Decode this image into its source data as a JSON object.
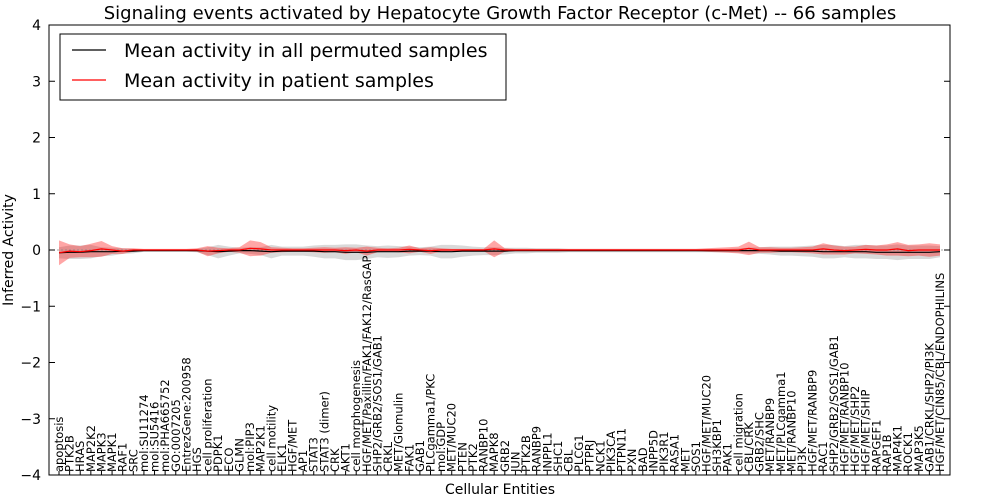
{
  "chart_data": {
    "type": "line",
    "title": "Signaling events activated by Hepatocyte Growth Factor Receptor (c-Met) -- 66 samples",
    "xlabel": "Cellular Entities",
    "ylabel": "Inferred Activity",
    "ylim": [
      -4,
      4
    ],
    "yticks": [
      -4,
      -3,
      -2,
      -1,
      0,
      1,
      2,
      3,
      4
    ],
    "legend": {
      "placement": "top-left",
      "entries": [
        {
          "label": "Mean activity in all permuted samples",
          "color": "#000000"
        },
        {
          "label": "Mean activity in patient samples",
          "color": "#ff0000"
        }
      ]
    },
    "categories": [
      "apoptosis",
      "PTK2B",
      "HRAS",
      "MAP2K2",
      "MAPK3",
      "MAPK1",
      "RAF1",
      "SRC",
      "mol:SU11274",
      "mol:SU5416",
      "mol:PHA665752",
      "GO:0007205",
      "EntrezGene:200958",
      "HGS",
      "cell proliferation",
      "PDPK1",
      "ECO",
      "GLMN",
      "mol:PIP3",
      "MAP2K1",
      "cell motility",
      "ELK1",
      "HGF/MET",
      "AP1",
      "STAT3",
      "STAT3 (dimer)",
      "CRK",
      "AKT1",
      "cell morphogenesis",
      "HGF/MET/Paxillin/FAK1/FAK12/RasGAP",
      "SHP2/GRB2/SOS1/GAB1",
      "CRKL",
      "MET/Glomulin",
      "FAK1",
      "GAB1",
      "PLCgamma1/PKC",
      "mol:GDP",
      "MET/MUC20",
      "PTEN",
      "PTK2",
      "RANBP10",
      "MAPK8",
      "GRB2",
      "JUN",
      "PTK2B",
      "RANBP9",
      "INPPL1",
      "SHC1",
      "CBL",
      "PLCG1",
      "PTPRJ",
      "NCK1",
      "PIK3CA",
      "PTPN11",
      "PXN",
      "BAD",
      "INPP5D",
      "PIK3R1",
      "RASA1",
      "MET",
      "SOS1",
      "HGF/MET/MUC20",
      "SH3KBP1",
      "PAK1",
      "cell migration",
      "CBL/CRK",
      "GRB2/SHC",
      "MET/RANBP9",
      "MET/PLCgamma1",
      "MET/RANBP10",
      "PI3K",
      "HGF/MET/RANBP9",
      "RAC1",
      "SHP2/GRB2/SOS1/GAB1",
      "HGF/MET/RANBP10",
      "HGF/MET/SHP2",
      "HGF/MET/SHIP",
      "RAPGEF1",
      "RAP1B",
      "MAP4K1",
      "ROCK1",
      "MAP3K5",
      "GAB1/CRKL/SHP2/PI3K",
      "HGF/MET/CIN85/CBL/ENDOPHILINS"
    ],
    "series": [
      {
        "name": "Mean activity in all permuted samples",
        "color": "#000000",
        "values": [
          -0.05,
          -0.04,
          -0.04,
          -0.03,
          -0.03,
          -0.03,
          -0.02,
          -0.02,
          -0.01,
          -0.01,
          -0.01,
          -0.01,
          -0.01,
          -0.01,
          -0.02,
          -0.03,
          -0.02,
          -0.01,
          -0.01,
          -0.02,
          -0.03,
          -0.02,
          -0.02,
          -0.02,
          -0.02,
          -0.03,
          -0.03,
          -0.04,
          -0.04,
          -0.04,
          -0.03,
          -0.03,
          -0.03,
          -0.02,
          -0.02,
          -0.02,
          -0.03,
          -0.03,
          -0.02,
          -0.02,
          -0.02,
          -0.02,
          -0.02,
          -0.01,
          -0.01,
          -0.01,
          -0.01,
          -0.01,
          -0.01,
          -0.01,
          -0.01,
          -0.01,
          -0.01,
          -0.01,
          -0.01,
          -0.01,
          -0.01,
          -0.01,
          -0.01,
          -0.01,
          -0.01,
          -0.01,
          -0.01,
          -0.01,
          -0.01,
          -0.01,
          -0.01,
          -0.01,
          -0.02,
          -0.02,
          -0.02,
          -0.02,
          -0.03,
          -0.03,
          -0.03,
          -0.03,
          -0.03,
          -0.04,
          -0.04,
          -0.04,
          -0.04,
          -0.04,
          -0.04,
          -0.03
        ]
      },
      {
        "name": "Mean activity in patient samples",
        "color": "#ff0000",
        "values": [
          -0.05,
          -0.02,
          -0.03,
          -0.01,
          0.02,
          0.0,
          -0.02,
          0.0,
          0.0,
          0.0,
          0.0,
          0.0,
          0.0,
          0.0,
          -0.02,
          -0.01,
          0.0,
          0.0,
          0.03,
          0.02,
          0.0,
          0.0,
          0.0,
          0.0,
          0.0,
          0.0,
          0.0,
          -0.01,
          0.0,
          -0.02,
          0.0,
          0.0,
          0.0,
          0.01,
          0.0,
          -0.01,
          0.0,
          0.0,
          0.0,
          0.0,
          0.0,
          0.02,
          0.0,
          0.0,
          0.0,
          0.0,
          0.0,
          0.0,
          0.0,
          0.0,
          0.0,
          0.0,
          0.0,
          0.0,
          0.0,
          0.0,
          0.0,
          0.0,
          0.0,
          0.0,
          0.0,
          0.0,
          0.0,
          0.0,
          0.0,
          0.03,
          0.0,
          0.0,
          0.0,
          0.0,
          0.0,
          0.0,
          0.02,
          0.0,
          -0.01,
          0.0,
          0.01,
          0.0,
          0.0,
          0.02,
          -0.01,
          0.0,
          0.0,
          0.0
        ]
      },
      {
        "name": "Permuted spread",
        "color": "#aaaaaa",
        "values": [
          0.1,
          0.12,
          0.12,
          0.12,
          0.08,
          0.07,
          0.05,
          0.04,
          0.02,
          0.02,
          0.02,
          0.02,
          0.02,
          0.03,
          0.07,
          0.12,
          0.08,
          0.05,
          0.06,
          0.07,
          0.12,
          0.08,
          0.08,
          0.08,
          0.1,
          0.12,
          0.12,
          0.14,
          0.14,
          0.12,
          0.1,
          0.11,
          0.1,
          0.08,
          0.07,
          0.08,
          0.12,
          0.12,
          0.1,
          0.08,
          0.07,
          0.07,
          0.06,
          0.05,
          0.05,
          0.04,
          0.04,
          0.04,
          0.03,
          0.03,
          0.03,
          0.03,
          0.03,
          0.03,
          0.03,
          0.03,
          0.03,
          0.03,
          0.03,
          0.03,
          0.03,
          0.03,
          0.03,
          0.03,
          0.04,
          0.05,
          0.06,
          0.07,
          0.08,
          0.08,
          0.09,
          0.1,
          0.12,
          0.12,
          0.1,
          0.12,
          0.12,
          0.12,
          0.12,
          0.14,
          0.12,
          0.12,
          0.12,
          0.1
        ]
      },
      {
        "name": "Patient spread",
        "color": "#ff0000",
        "values": [
          0.22,
          0.12,
          0.1,
          0.12,
          0.14,
          0.07,
          0.05,
          0.03,
          0.02,
          0.02,
          0.02,
          0.02,
          0.02,
          0.03,
          0.09,
          0.05,
          0.03,
          0.05,
          0.14,
          0.12,
          0.05,
          0.04,
          0.03,
          0.03,
          0.04,
          0.05,
          0.04,
          0.06,
          0.04,
          0.08,
          0.04,
          0.03,
          0.04,
          0.07,
          0.03,
          0.06,
          0.03,
          0.02,
          0.02,
          0.02,
          0.02,
          0.15,
          0.03,
          0.02,
          0.02,
          0.02,
          0.02,
          0.02,
          0.02,
          0.02,
          0.02,
          0.02,
          0.02,
          0.02,
          0.02,
          0.02,
          0.02,
          0.02,
          0.02,
          0.02,
          0.02,
          0.03,
          0.04,
          0.05,
          0.06,
          0.12,
          0.05,
          0.05,
          0.04,
          0.04,
          0.05,
          0.06,
          0.1,
          0.08,
          0.07,
          0.06,
          0.08,
          0.08,
          0.1,
          0.12,
          0.1,
          0.1,
          0.12,
          0.1
        ]
      }
    ]
  }
}
